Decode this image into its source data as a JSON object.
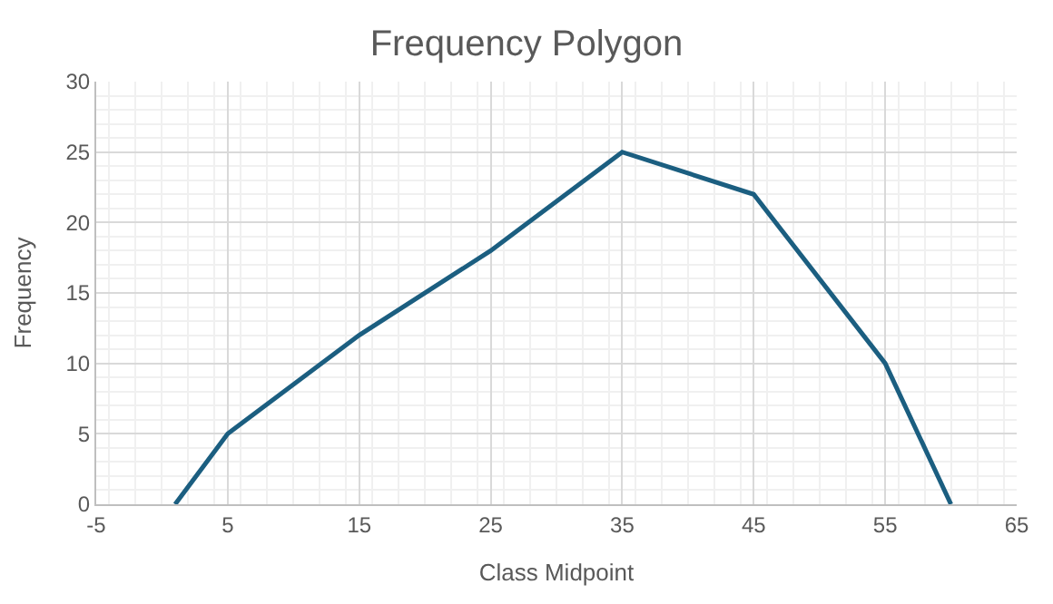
{
  "chart_data": {
    "type": "line",
    "title": "Frequency Polygon",
    "xlabel": "Class Midpoint",
    "ylabel": "Frequency",
    "x": [
      1,
      5,
      15,
      25,
      35,
      45,
      55,
      60
    ],
    "series": [
      {
        "color": "#1b5e80",
        "values": [
          0,
          5,
          12,
          18,
          25,
          22,
          10,
          0
        ]
      }
    ],
    "xlim": [
      -5,
      65
    ],
    "xticks": [
      -5,
      5,
      15,
      25,
      35,
      45,
      55,
      65
    ],
    "ylim": [
      0,
      30
    ],
    "yticks": [
      0,
      5,
      10,
      15,
      20,
      25,
      30
    ],
    "grid": true,
    "marker": "none",
    "line_style": "solid"
  }
}
